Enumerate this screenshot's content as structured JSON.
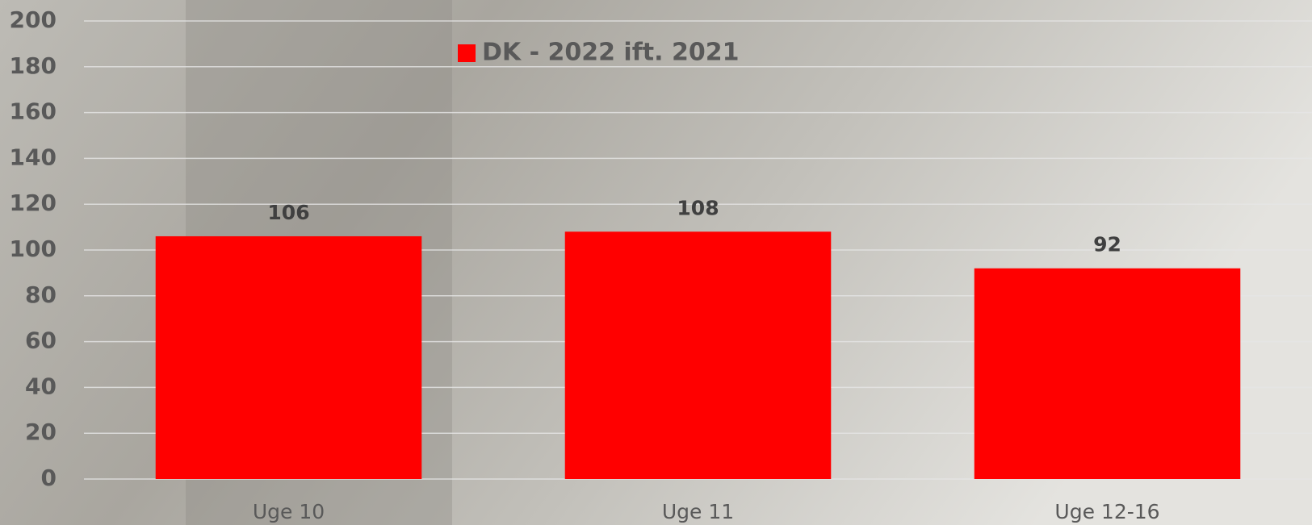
{
  "chart_data": {
    "type": "bar",
    "categories": [
      "Uge 10",
      "Uge 11",
      "Uge 12-16"
    ],
    "series": [
      {
        "name": "DK - 2022 ift. 2021",
        "color": "#ff0000",
        "values": [
          106,
          108,
          92
        ]
      }
    ],
    "ylim": [
      0,
      200
    ],
    "yticks": [
      0,
      20,
      40,
      60,
      80,
      100,
      120,
      140,
      160,
      180,
      200
    ],
    "grid": true,
    "legend": "top"
  }
}
